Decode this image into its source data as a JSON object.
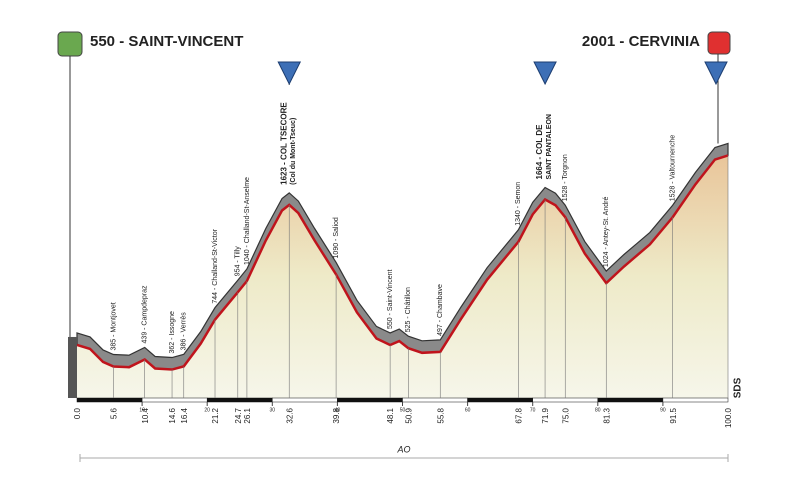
{
  "chart_data": {
    "type": "line",
    "start": {
      "label": "550 - SAINT-VINCENT",
      "km": {
        "value": 0,
        "label": "0.0"
      }
    },
    "finish": {
      "label": "2001 - CERVINIA",
      "km": {
        "value": 100,
        "label": "100.0"
      }
    },
    "distance_label": "AO",
    "brand": "SDS",
    "x": [
      0,
      2,
      4,
      5.6,
      8,
      10.4,
      12,
      14.6,
      16.4,
      19,
      21.2,
      24.7,
      26.1,
      29,
      31.5,
      32.6,
      34,
      36.5,
      39.8,
      43,
      46,
      48.1,
      49.5,
      50.9,
      53,
      55.8,
      59,
      63,
      67.8,
      70,
      71.9,
      73.5,
      75,
      78,
      81.3,
      84,
      88,
      91.5,
      95,
      98,
      100
    ],
    "values": [
      550,
      520,
      420,
      385,
      380,
      439,
      370,
      362,
      386,
      560,
      744,
      954,
      1040,
      1350,
      1580,
      1623,
      1560,
      1350,
      1090,
      800,
      600,
      550,
      580,
      525,
      490,
      497,
      750,
      1050,
      1340,
      1550,
      1664,
      1620,
      1528,
      1250,
      1024,
      1150,
      1320,
      1528,
      1780,
      1970,
      2001
    ],
    "xlim": [
      0,
      100
    ],
    "ylim": [
      0,
      2200
    ],
    "xticks": [
      10,
      20,
      30,
      40,
      50,
      60,
      70,
      80,
      90
    ],
    "waypoints": [
      {
        "km": 5.6,
        "label": "385 - Montjovet"
      },
      {
        "km": 10.4,
        "label": "439 - Campdepraz"
      },
      {
        "km": 14.6,
        "label": "362 - Issogne"
      },
      {
        "km": 16.4,
        "label": "386 - Verrès"
      },
      {
        "km": 21.2,
        "label": "744 - Challand-St-Victor"
      },
      {
        "km": 24.7,
        "label": "954 - Tilly"
      },
      {
        "km": 26.1,
        "label": "1040 - Challand-St-Anselme"
      },
      {
        "km": 32.6,
        "label": "1623 - COL TSECORE",
        "sublabel": "(Col du Mont-Tseuc)"
      },
      {
        "km": 39.8,
        "label": "1090 - Saliod"
      },
      {
        "km": 48.1,
        "label": "550 - Saint-Vincent"
      },
      {
        "km": 50.9,
        "label": "525 - Châtillon"
      },
      {
        "km": 55.8,
        "label": "497 - Chambave"
      },
      {
        "km": 67.8,
        "label": "1340 - Semon"
      },
      {
        "km": 71.9,
        "label": "1664 - COL DE",
        "sublabel": "SAINT PANTALEON"
      },
      {
        "km": {
          "value": 75,
          "label": "75.0"
        },
        "label": "1528 - Torgnon"
      },
      {
        "km": 81.3,
        "label": "1024 - Antey-St. André"
      },
      {
        "km": 91.5,
        "label": "1528 - Valtournenche"
      }
    ]
  }
}
